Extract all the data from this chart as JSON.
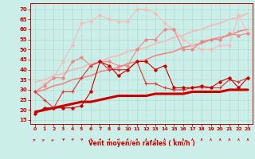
{
  "x": [
    0,
    1,
    2,
    3,
    4,
    5,
    6,
    7,
    8,
    9,
    10,
    11,
    12,
    13,
    14,
    15,
    16,
    17,
    18,
    19,
    20,
    21,
    22,
    23
  ],
  "line1_dark": [
    18,
    21,
    21,
    21,
    21,
    22,
    29,
    44,
    42,
    37,
    40,
    44,
    44,
    40,
    42,
    31,
    31,
    31,
    32,
    31,
    34,
    36,
    31,
    36
  ],
  "line2_med": [
    29,
    25,
    21,
    29,
    29,
    36,
    42,
    44,
    40,
    40,
    40,
    44,
    33,
    33,
    31,
    30,
    30,
    31,
    31,
    31,
    31,
    35,
    34,
    36
  ],
  "line3_pink": [
    29,
    32,
    36,
    36,
    44,
    46,
    42,
    44,
    44,
    42,
    42,
    50,
    55,
    55,
    60,
    60,
    50,
    50,
    54,
    55,
    55,
    58,
    57,
    58
  ],
  "line4_light": [
    29,
    33,
    36,
    44,
    52,
    63,
    64,
    67,
    65,
    64,
    64,
    70,
    70,
    68,
    63,
    60,
    55,
    52,
    50,
    50,
    52,
    52,
    67,
    58
  ],
  "trend_dark": [
    19,
    20,
    21,
    22,
    23,
    24,
    24,
    25,
    26,
    27,
    27,
    27,
    27,
    28,
    28,
    28,
    28,
    29,
    29,
    29,
    29,
    30,
    30,
    30
  ],
  "trend_med": [
    29,
    30,
    32,
    33,
    35,
    36,
    37,
    39,
    40,
    41,
    43,
    44,
    45,
    47,
    48,
    49,
    51,
    52,
    53,
    55,
    56,
    57,
    59,
    60
  ],
  "trend_light": [
    34,
    35,
    37,
    38,
    40,
    41,
    43,
    44,
    46,
    47,
    49,
    50,
    51,
    53,
    54,
    56,
    57,
    59,
    60,
    62,
    63,
    65,
    66,
    68
  ],
  "color_dark": "#cc0000",
  "color_med": "#dd3333",
  "color_pink": "#ee8888",
  "color_light": "#f5bbbb",
  "background": "#cceee8",
  "grid_color": "#aaddcc",
  "xlabel": "Vent moyen/en rafales ( km/h )",
  "ylim": [
    13,
    73
  ],
  "xlim": [
    -0.5,
    23.5
  ],
  "yticks": [
    15,
    20,
    25,
    30,
    35,
    40,
    45,
    50,
    55,
    60,
    65,
    70
  ],
  "xticks": [
    0,
    1,
    2,
    3,
    4,
    5,
    6,
    7,
    8,
    9,
    10,
    11,
    12,
    13,
    14,
    15,
    16,
    17,
    18,
    19,
    20,
    21,
    22,
    23
  ]
}
